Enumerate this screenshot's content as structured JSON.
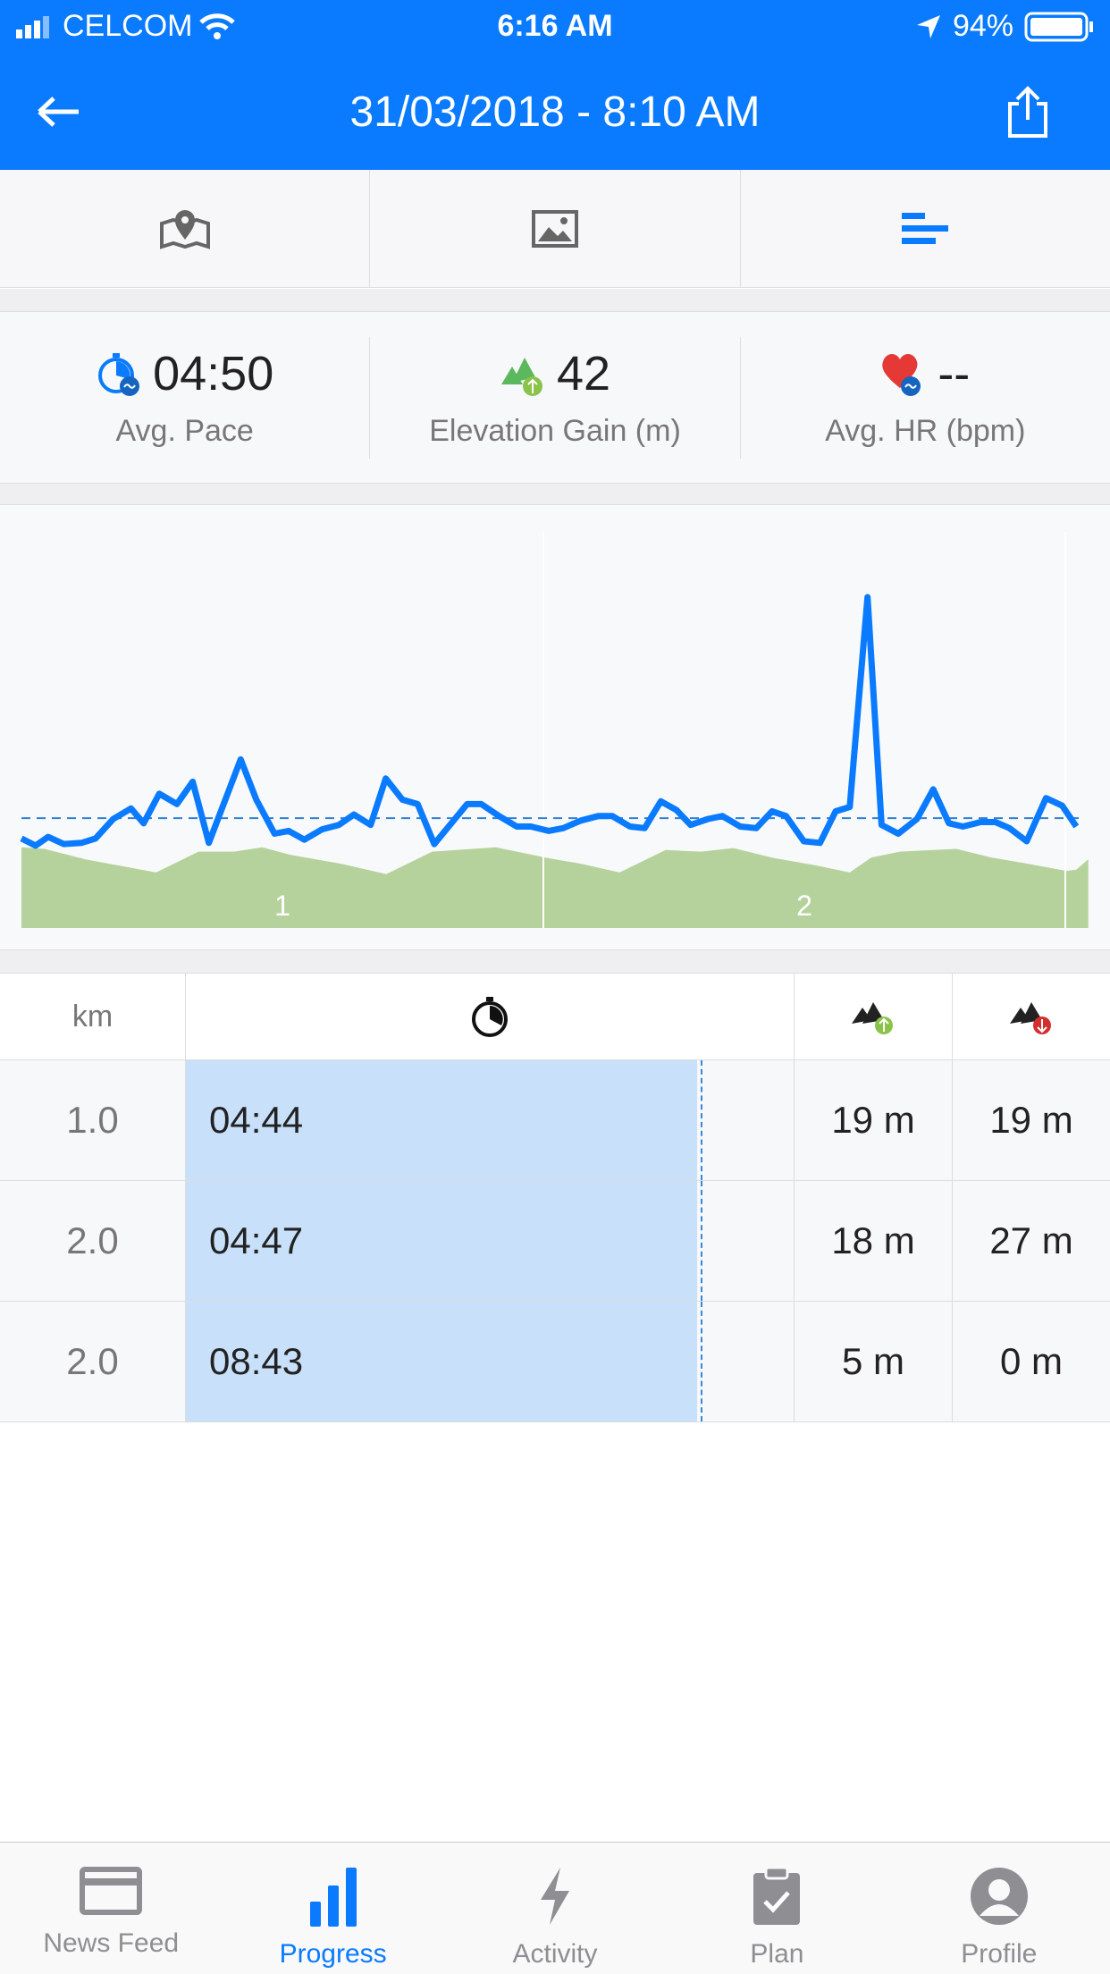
{
  "status_bar": {
    "carrier": "CELCOM",
    "time": "6:16 AM",
    "battery": "94%"
  },
  "nav": {
    "title": "31/03/2018 - 8:10 AM",
    "back_icon": "arrow-left-icon",
    "share_icon": "share-icon"
  },
  "view_tabs": [
    {
      "icon": "map-icon",
      "active": false
    },
    {
      "icon": "photo-icon",
      "active": false
    },
    {
      "icon": "splits-icon",
      "active": true
    }
  ],
  "stats": [
    {
      "icon": "pace-stopwatch-icon",
      "value": "04:50",
      "label": "Avg. Pace"
    },
    {
      "icon": "elevation-up-icon",
      "value": "42",
      "label": "Elevation Gain (m)"
    },
    {
      "icon": "heart-rate-icon",
      "value": "--",
      "label": "Avg. HR (bpm)"
    }
  ],
  "colors": {
    "accent": "#0A7BFF",
    "elevation": "#b6d29c",
    "pace_line": "#0A7BFF",
    "split_bar": "#c8e0fa"
  },
  "chart_data": {
    "type": "line",
    "x_unit": "km",
    "km_markers": [
      "1",
      "2"
    ],
    "average_pace_level": 27.5,
    "pace": {
      "x": [
        0,
        0.027,
        0.051,
        0.081,
        0.115,
        0.142,
        0.176,
        0.21,
        0.234,
        0.264,
        0.298,
        0.328,
        0.359,
        0.393,
        0.42,
        0.45,
        0.485,
        0.512,
        0.542,
        0.576,
        0.608,
        0.637,
        0.669,
        0.698,
        0.73,
        0.759,
        0.791,
        0.854,
        0.881,
        0.915,
        0.949,
        0.976,
        1.01,
        1.038,
        1.072,
        1.105,
        1.132,
        1.166,
        1.194,
        1.225,
        1.255,
        1.282,
        1.316,
        1.343,
        1.377,
        1.408,
        1.438,
        1.465,
        1.499,
        1.53,
        1.56,
        1.587,
        1.621,
        1.648,
        1.68,
        1.716,
        1.747,
        1.777,
        1.804,
        1.838,
        1.866,
        1.893,
        1.926,
        1.963,
        1.994,
        2.021
      ],
      "values": [
        22.4,
        20.6,
        22.8,
        21,
        21.3,
        22.4,
        27.3,
        29.9,
        26.2,
        33.6,
        31,
        36.6,
        21.3,
        32.9,
        42.2,
        32.1,
        23.6,
        24.3,
        22.1,
        24.7,
        25.8,
        28.4,
        25.8,
        37.4,
        32.1,
        31,
        21,
        31,
        31,
        28,
        25.4,
        25.4,
        24.3,
        25,
        26.9,
        28,
        28,
        25.4,
        25,
        31.7,
        29.5,
        25.8,
        27.3,
        28,
        25.4,
        25,
        29.2,
        28,
        21.7,
        21.3,
        29.2,
        30.3,
        82.8,
        25.8,
        23.6,
        27.3,
        34.7,
        26.2,
        25.4,
        26.5,
        26.5,
        25,
        21.7,
        32.5,
        30.6,
        25.4
      ]
    },
    "elevation": {
      "x": [
        0,
        0.044,
        0.122,
        0.258,
        0.339,
        0.407,
        0.461,
        0.516,
        0.611,
        0.699,
        0.787,
        0.909,
        1.004,
        1.071,
        1.146,
        1.234,
        1.302,
        1.364,
        1.438,
        1.52,
        1.587,
        1.628,
        1.683,
        1.791,
        1.859,
        1.927,
        2.002,
        2.021,
        2.044
      ],
      "values": [
        20.2,
        19.8,
        17.2,
        13.9,
        19.1,
        19.1,
        20.2,
        18.3,
        16.1,
        13.5,
        19.1,
        20.2,
        17.6,
        16.1,
        13.9,
        19.5,
        19.1,
        20,
        17.6,
        15.7,
        13.9,
        17.6,
        19.1,
        19.8,
        17.6,
        16.1,
        14.3,
        14.6,
        17.2
      ]
    }
  },
  "splits": {
    "headers": {
      "km": "km",
      "time_icon": "stopwatch-icon",
      "up_icon": "elevation-up-icon",
      "down_icon": "elevation-down-icon"
    },
    "rows": [
      {
        "km": "1.0",
        "time": "04:44",
        "up": "19 m",
        "down": "19 m"
      },
      {
        "km": "2.0",
        "time": "04:47",
        "up": "18 m",
        "down": "27 m"
      },
      {
        "km": "2.0",
        "time": "08:43",
        "up": "5 m",
        "down": "0 m"
      }
    ]
  },
  "bottom_tabs": [
    {
      "label": "News Feed",
      "icon": "news-feed-icon"
    },
    {
      "label": "Progress",
      "icon": "progress-icon",
      "active": true
    },
    {
      "label": "Activity",
      "icon": "activity-icon"
    },
    {
      "label": "Plan",
      "icon": "plan-icon"
    },
    {
      "label": "Profile",
      "icon": "profile-icon"
    }
  ]
}
